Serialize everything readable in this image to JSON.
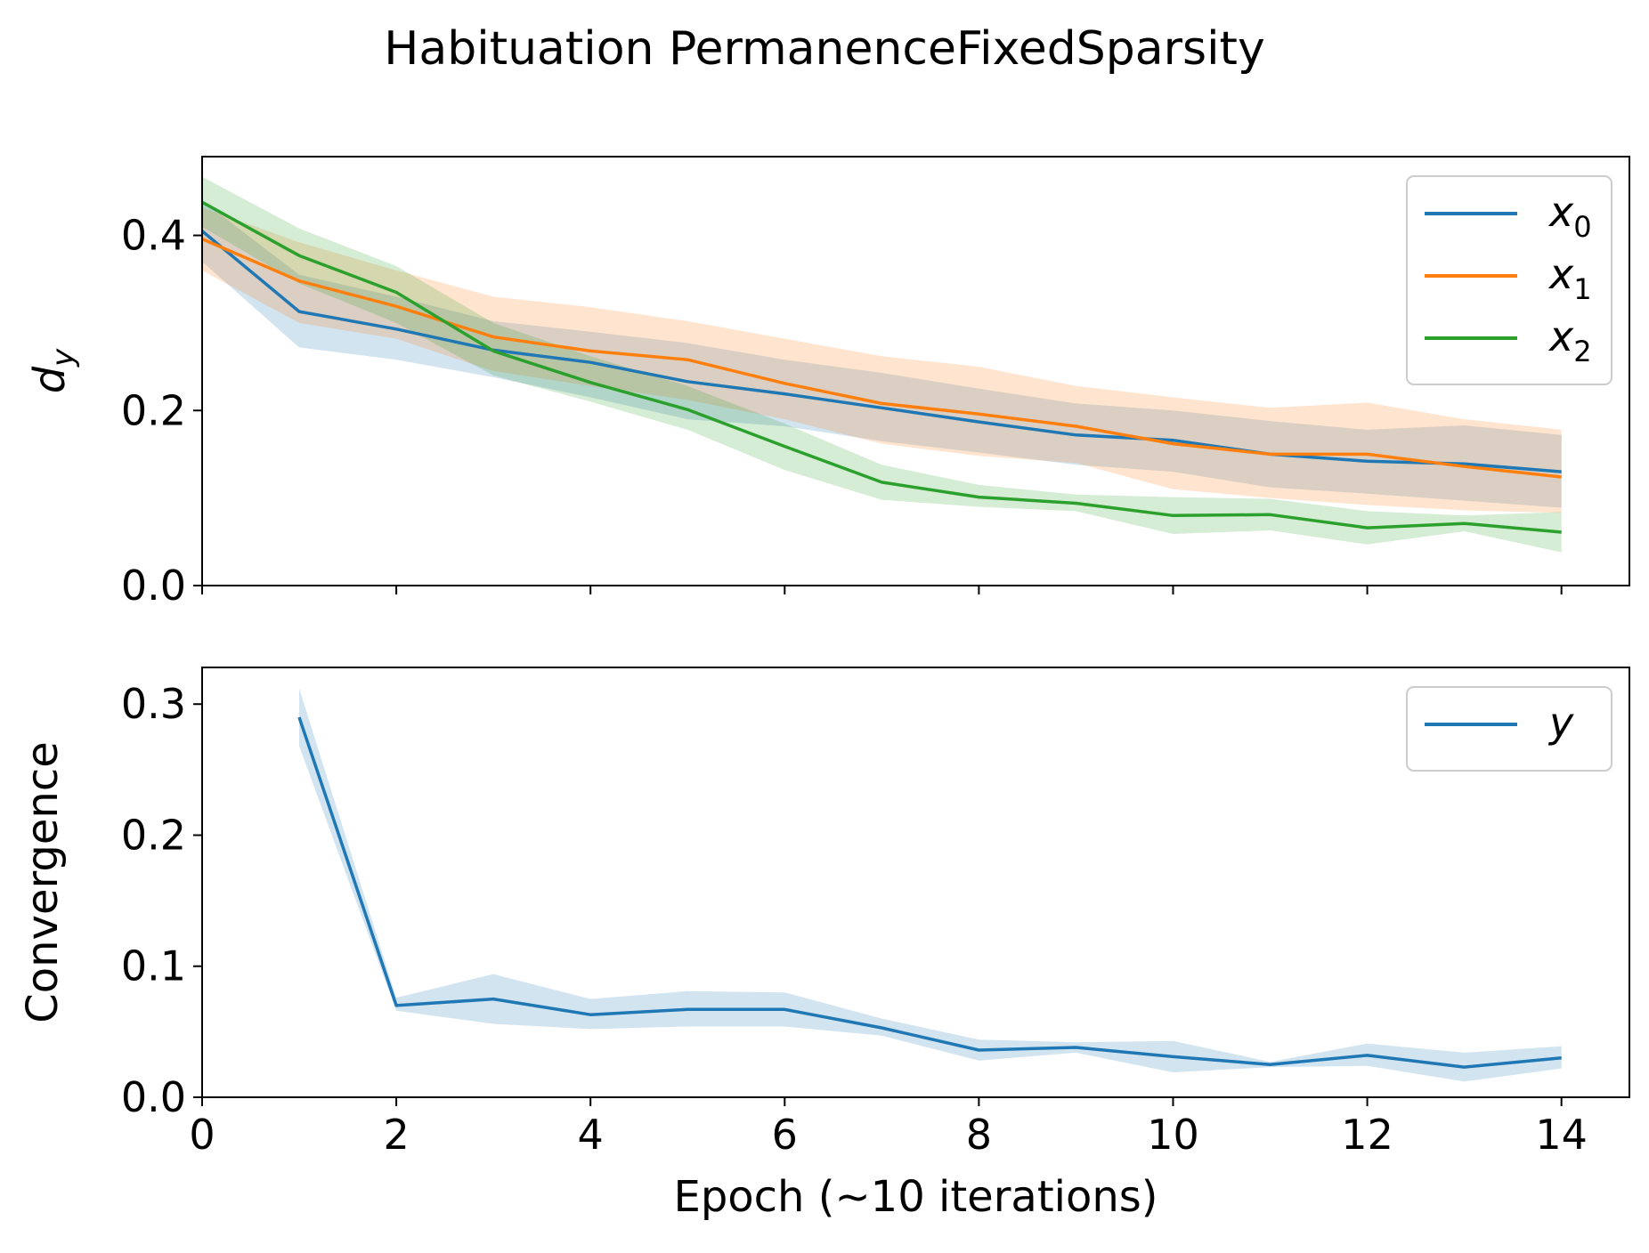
{
  "chart_data": [
    {
      "type": "line",
      "title": "Habituation PermanenceFixedSparsity",
      "ylabel": "d_y",
      "ylabel_base": "d",
      "ylabel_sub": "y",
      "xlim": [
        0,
        14.7
      ],
      "ylim": [
        0,
        0.49
      ],
      "yticks": [
        0.0,
        0.2,
        0.4
      ],
      "ytick_labels": [
        "0.0",
        "0.2",
        "0.4"
      ],
      "xticks": [
        0,
        2,
        4,
        6,
        8,
        10,
        12,
        14
      ],
      "legend": "top-right",
      "series": [
        {
          "name": "x_0",
          "name_base": "x",
          "name_sub": "0",
          "color": "#1f77b4",
          "x": [
            0,
            1,
            2,
            3,
            4,
            5,
            6,
            7,
            8,
            9,
            10,
            11,
            12,
            13,
            14
          ],
          "values": [
            0.405,
            0.313,
            0.293,
            0.269,
            0.255,
            0.233,
            0.219,
            0.203,
            0.187,
            0.172,
            0.166,
            0.15,
            0.142,
            0.139,
            0.13
          ],
          "lower": [
            0.37,
            0.272,
            0.258,
            0.238,
            0.215,
            0.19,
            0.182,
            0.165,
            0.152,
            0.138,
            0.13,
            0.112,
            0.105,
            0.097,
            0.089
          ],
          "upper": [
            0.44,
            0.355,
            0.33,
            0.302,
            0.29,
            0.277,
            0.258,
            0.243,
            0.225,
            0.208,
            0.2,
            0.188,
            0.178,
            0.183,
            0.172
          ]
        },
        {
          "name": "x_1",
          "name_base": "x",
          "name_sub": "1",
          "color": "#ff7f0e",
          "x": [
            0,
            1,
            2,
            3,
            4,
            5,
            6,
            7,
            8,
            9,
            10,
            11,
            12,
            13,
            14
          ],
          "values": [
            0.396,
            0.348,
            0.319,
            0.284,
            0.268,
            0.258,
            0.231,
            0.208,
            0.196,
            0.182,
            0.162,
            0.15,
            0.15,
            0.136,
            0.124
          ],
          "lower": [
            0.36,
            0.3,
            0.282,
            0.245,
            0.228,
            0.212,
            0.19,
            0.162,
            0.148,
            0.14,
            0.11,
            0.1,
            0.092,
            0.086,
            0.083
          ],
          "upper": [
            0.432,
            0.392,
            0.36,
            0.33,
            0.318,
            0.302,
            0.282,
            0.262,
            0.25,
            0.228,
            0.215,
            0.203,
            0.209,
            0.19,
            0.178
          ]
        },
        {
          "name": "x_2",
          "name_base": "x",
          "name_sub": "2",
          "color": "#2ca02c",
          "x": [
            0,
            1,
            2,
            3,
            4,
            5,
            6,
            7,
            8,
            9,
            10,
            11,
            12,
            13,
            14
          ],
          "values": [
            0.438,
            0.377,
            0.335,
            0.268,
            0.232,
            0.201,
            0.159,
            0.118,
            0.101,
            0.094,
            0.08,
            0.081,
            0.066,
            0.071,
            0.061
          ],
          "lower": [
            0.41,
            0.345,
            0.3,
            0.24,
            0.21,
            0.178,
            0.132,
            0.098,
            0.09,
            0.085,
            0.059,
            0.063,
            0.047,
            0.062,
            0.038
          ],
          "upper": [
            0.467,
            0.408,
            0.365,
            0.3,
            0.262,
            0.228,
            0.185,
            0.138,
            0.115,
            0.104,
            0.101,
            0.099,
            0.085,
            0.08,
            0.084
          ]
        }
      ]
    },
    {
      "type": "line",
      "ylabel": "Convergence",
      "xlabel": "Epoch (~10 iterations)",
      "xlim": [
        0,
        14.7
      ],
      "ylim": [
        0,
        0.328
      ],
      "yticks": [
        0.0,
        0.1,
        0.2,
        0.3
      ],
      "ytick_labels": [
        "0.0",
        "0.1",
        "0.2",
        "0.3"
      ],
      "xticks": [
        0,
        2,
        4,
        6,
        8,
        10,
        12,
        14
      ],
      "xtick_labels": [
        "0",
        "2",
        "4",
        "6",
        "8",
        "10",
        "12",
        "14"
      ],
      "legend": "top-right",
      "series": [
        {
          "name": "y",
          "color": "#1f77b4",
          "x": [
            1,
            2,
            3,
            4,
            5,
            6,
            7,
            8,
            9,
            10,
            11,
            12,
            13,
            14
          ],
          "values": [
            0.29,
            0.07,
            0.075,
            0.063,
            0.067,
            0.067,
            0.053,
            0.036,
            0.038,
            0.031,
            0.025,
            0.032,
            0.023,
            0.03
          ],
          "lower": [
            0.268,
            0.066,
            0.056,
            0.052,
            0.054,
            0.054,
            0.047,
            0.028,
            0.034,
            0.019,
            0.023,
            0.024,
            0.012,
            0.022
          ],
          "upper": [
            0.312,
            0.076,
            0.094,
            0.075,
            0.081,
            0.08,
            0.06,
            0.044,
            0.042,
            0.043,
            0.027,
            0.041,
            0.034,
            0.039
          ]
        }
      ]
    }
  ]
}
